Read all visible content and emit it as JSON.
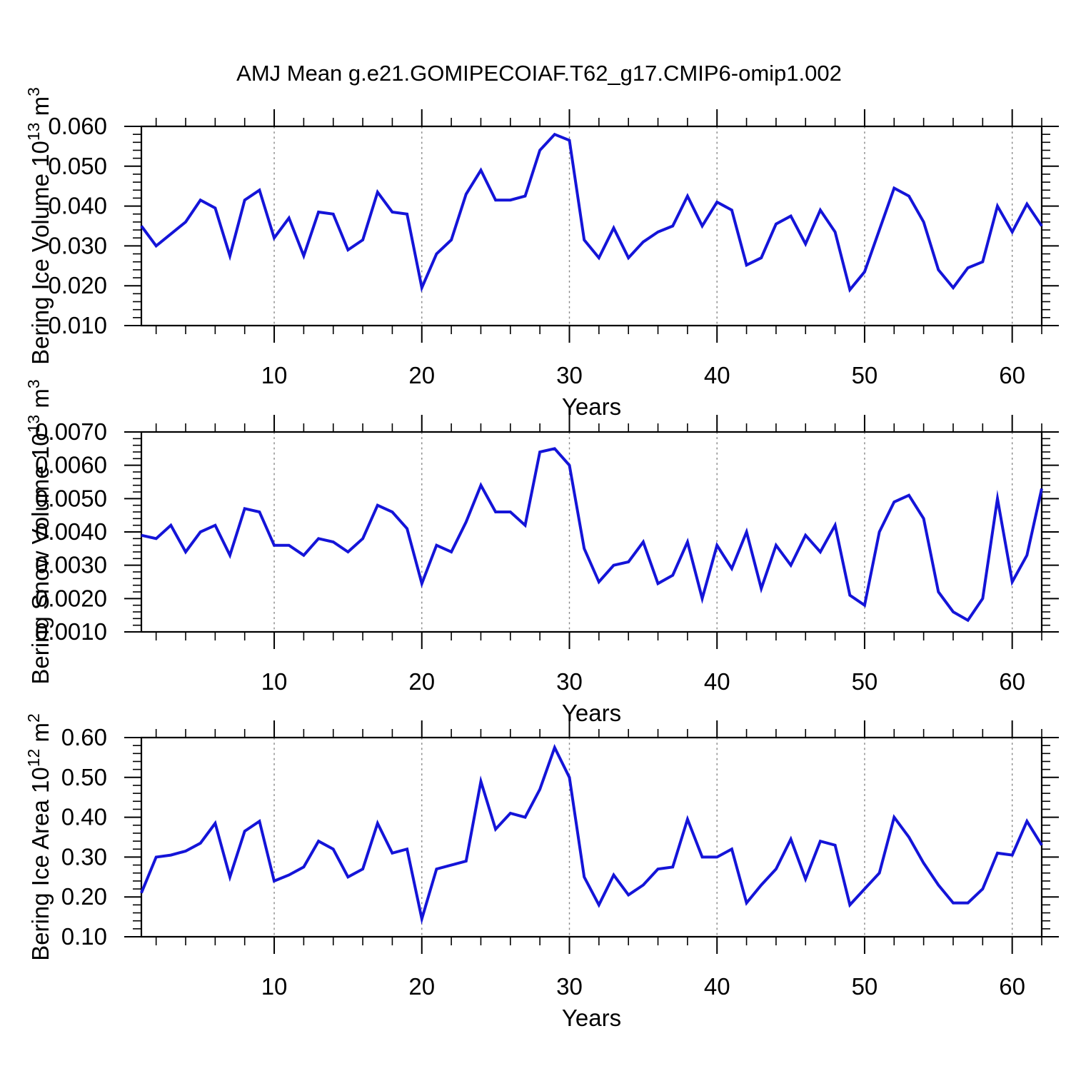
{
  "title": "AMJ Mean g.e21.GOMIPECOIAF.T62_g17.CMIP6-omip1.002",
  "styles": {
    "line_color": "#1414d8",
    "grid_color": "#878787",
    "axis_color": "#000000",
    "background": "#ffffff"
  },
  "chart_data": [
    {
      "id": "bering-ice-volume",
      "type": "line",
      "title": "",
      "ylabel": "Bering Ice Volume 10^13 m^3",
      "ylabel_parts": [
        {
          "t": "Bering Ice Volume 10",
          "sup": false
        },
        {
          "t": "13",
          "sup": true
        },
        {
          "t": " m",
          "sup": false
        },
        {
          "t": "3",
          "sup": true
        }
      ],
      "xlabel": "Years",
      "legend": "none",
      "grid": "vertical-dashed-at-major-xticks",
      "xlim": [
        1,
        62
      ],
      "x_start": 1,
      "x_step": 1,
      "xticks": [
        10,
        20,
        30,
        40,
        50,
        60
      ],
      "xtick_labels": [
        "10",
        "20",
        "30",
        "40",
        "50",
        "60"
      ],
      "xminor_start": 2,
      "xminor_step": 2,
      "ylim": [
        0.01,
        0.06
      ],
      "yticks": [
        0.01,
        0.02,
        0.03,
        0.04,
        0.05,
        0.06
      ],
      "ytick_labels": [
        "0.010",
        "0.020",
        "0.030",
        "0.040",
        "0.050",
        "0.060"
      ],
      "yminor_step": 0.002,
      "values": [
        0.035,
        0.03,
        0.033,
        0.036,
        0.0415,
        0.0395,
        0.0275,
        0.0415,
        0.044,
        0.032,
        0.037,
        0.0275,
        0.0385,
        0.038,
        0.029,
        0.0315,
        0.0435,
        0.0385,
        0.038,
        0.0195,
        0.028,
        0.0315,
        0.043,
        0.049,
        0.0415,
        0.0415,
        0.0425,
        0.054,
        0.058,
        0.0565,
        0.0315,
        0.027,
        0.0345,
        0.027,
        0.031,
        0.0335,
        0.035,
        0.0425,
        0.035,
        0.041,
        0.039,
        0.0252,
        0.027,
        0.0355,
        0.0375,
        0.0305,
        0.039,
        0.0335,
        0.019,
        0.0235,
        0.034,
        0.0445,
        0.0425,
        0.036,
        0.024,
        0.0195,
        0.0245,
        0.026,
        0.04,
        0.0335,
        0.0405,
        0.035
      ]
    },
    {
      "id": "bering-snow-volume",
      "type": "line",
      "title": "",
      "ylabel": "Bering Snow Volume 10^13 m^3",
      "ylabel_parts": [
        {
          "t": "Bering Snow Volume 10",
          "sup": false
        },
        {
          "t": "13",
          "sup": true
        },
        {
          "t": " m",
          "sup": false
        },
        {
          "t": "3",
          "sup": true
        }
      ],
      "xlabel": "Years",
      "legend": "none",
      "grid": "vertical-dashed-at-major-xticks",
      "xlim": [
        1,
        62
      ],
      "x_start": 1,
      "x_step": 1,
      "xticks": [
        10,
        20,
        30,
        40,
        50,
        60
      ],
      "xtick_labels": [
        "10",
        "20",
        "30",
        "40",
        "50",
        "60"
      ],
      "xminor_start": 2,
      "xminor_step": 2,
      "ylim": [
        0.001,
        0.007
      ],
      "yticks": [
        0.001,
        0.002,
        0.003,
        0.004,
        0.005,
        0.006,
        0.007
      ],
      "ytick_labels": [
        "0.0010",
        "0.0020",
        "0.0030",
        "0.0040",
        "0.0050",
        "0.0060",
        "0.0070"
      ],
      "yminor_step": 0.0002,
      "values": [
        0.0039,
        0.0038,
        0.0042,
        0.0034,
        0.004,
        0.0042,
        0.0033,
        0.0047,
        0.0046,
        0.0036,
        0.0036,
        0.0033,
        0.0038,
        0.0037,
        0.0034,
        0.0038,
        0.0048,
        0.0046,
        0.0041,
        0.00245,
        0.0036,
        0.0034,
        0.0043,
        0.0054,
        0.0046,
        0.0046,
        0.0042,
        0.0064,
        0.0065,
        0.006,
        0.0035,
        0.0025,
        0.003,
        0.0031,
        0.0037,
        0.00245,
        0.0027,
        0.0037,
        0.002,
        0.0036,
        0.0029,
        0.004,
        0.0023,
        0.0036,
        0.003,
        0.0039,
        0.0034,
        0.0042,
        0.0021,
        0.0018,
        0.004,
        0.0049,
        0.0051,
        0.0044,
        0.0022,
        0.0016,
        0.00135,
        0.002,
        0.005,
        0.0025,
        0.0033,
        0.0053
      ]
    },
    {
      "id": "bering-ice-area",
      "type": "line",
      "title": "",
      "ylabel": "Bering Ice Area 10^12 m^2",
      "ylabel_parts": [
        {
          "t": "Bering Ice Area 10",
          "sup": false
        },
        {
          "t": "12",
          "sup": true
        },
        {
          "t": " m",
          "sup": false
        },
        {
          "t": "2",
          "sup": true
        }
      ],
      "xlabel": "Years",
      "legend": "none",
      "grid": "vertical-dashed-at-major-xticks",
      "xlim": [
        1,
        62
      ],
      "x_start": 1,
      "x_step": 1,
      "xticks": [
        10,
        20,
        30,
        40,
        50,
        60
      ],
      "xtick_labels": [
        "10",
        "20",
        "30",
        "40",
        "50",
        "60"
      ],
      "xminor_start": 2,
      "xminor_step": 2,
      "ylim": [
        0.1,
        0.6
      ],
      "yticks": [
        0.1,
        0.2,
        0.3,
        0.4,
        0.5,
        0.6
      ],
      "ytick_labels": [
        "0.10",
        "0.20",
        "0.30",
        "0.40",
        "0.50",
        "0.60"
      ],
      "yminor_step": 0.02,
      "values": [
        0.21,
        0.3,
        0.305,
        0.315,
        0.335,
        0.385,
        0.25,
        0.365,
        0.39,
        0.24,
        0.255,
        0.275,
        0.34,
        0.32,
        0.25,
        0.27,
        0.385,
        0.31,
        0.32,
        0.145,
        0.27,
        0.28,
        0.29,
        0.49,
        0.37,
        0.41,
        0.4,
        0.47,
        0.575,
        0.5,
        0.25,
        0.18,
        0.255,
        0.205,
        0.23,
        0.27,
        0.275,
        0.395,
        0.3,
        0.3,
        0.32,
        0.185,
        0.23,
        0.27,
        0.345,
        0.245,
        0.34,
        0.33,
        0.18,
        0.22,
        0.26,
        0.4,
        0.35,
        0.285,
        0.23,
        0.185,
        0.185,
        0.22,
        0.31,
        0.305,
        0.39,
        0.33
      ]
    }
  ]
}
